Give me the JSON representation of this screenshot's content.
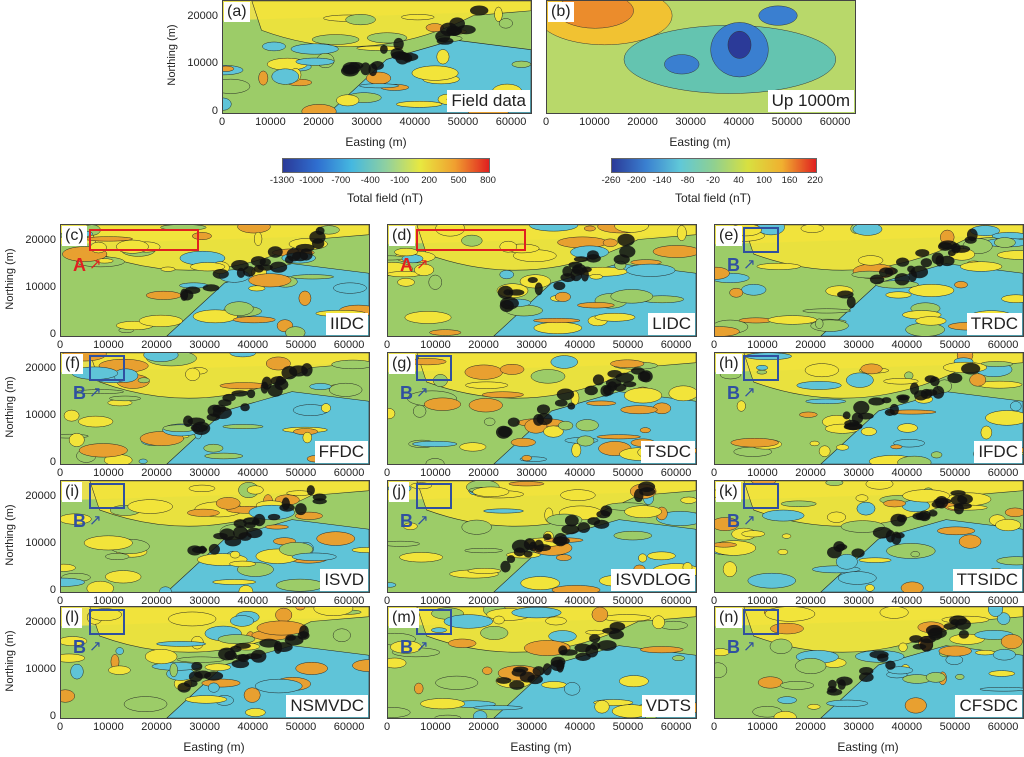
{
  "top_panels": [
    {
      "label": "(a)",
      "method": "Field data"
    },
    {
      "label": "(b)",
      "method": "Up 1000m"
    }
  ],
  "grid_panels": [
    {
      "label": "(c)",
      "method": "IIDC",
      "marker": "A",
      "marker_color": "#e02020"
    },
    {
      "label": "(d)",
      "method": "LIDC",
      "marker": "A",
      "marker_color": "#e02020"
    },
    {
      "label": "(e)",
      "method": "TRDC",
      "marker": "B",
      "marker_color": "#3050a0"
    },
    {
      "label": "(f)",
      "method": "FFDC",
      "marker": "B",
      "marker_color": "#3050a0"
    },
    {
      "label": "(g)",
      "method": "TSDC",
      "marker": "B",
      "marker_color": "#3050a0"
    },
    {
      "label": "(h)",
      "method": "IFDC",
      "marker": "B",
      "marker_color": "#3050a0"
    },
    {
      "label": "(i)",
      "method": "ISVD",
      "marker": "B",
      "marker_color": "#3050a0"
    },
    {
      "label": "(j)",
      "method": "ISVDLOG",
      "marker": "B",
      "marker_color": "#3050a0"
    },
    {
      "label": "(k)",
      "method": "TTSIDC",
      "marker": "B",
      "marker_color": "#3050a0"
    },
    {
      "label": "(l)",
      "method": "NSMVDC",
      "marker": "B",
      "marker_color": "#3050a0"
    },
    {
      "label": "(m)",
      "method": "VDTS",
      "marker": "B",
      "marker_color": "#3050a0"
    },
    {
      "label": "(n)",
      "method": "CFSDC",
      "marker": "B",
      "marker_color": "#3050a0"
    }
  ],
  "axes": {
    "xlabel": "Easting (m)",
    "ylabel": "Northing (m)",
    "xticks": [
      "0",
      "10000",
      "20000",
      "30000",
      "40000",
      "50000",
      "60000"
    ],
    "yticks": [
      "0",
      "10000",
      "20000"
    ],
    "xrange": [
      0,
      64000
    ],
    "yrange": [
      0,
      23500
    ]
  },
  "colorbars": [
    {
      "title": "Total field (nT)",
      "ticks": [
        "-1300",
        "-1000",
        "-700",
        "-400",
        "-100",
        "200",
        "500",
        "800"
      ]
    },
    {
      "title": "Total field (nT)",
      "ticks": [
        "-260",
        "-200",
        "-140",
        "-80",
        "-20",
        "40",
        "100",
        "160",
        "220"
      ]
    }
  ],
  "colors": {
    "low": "#2b3a98",
    "mid": "#8cc97a",
    "high": "#e8302a"
  }
}
